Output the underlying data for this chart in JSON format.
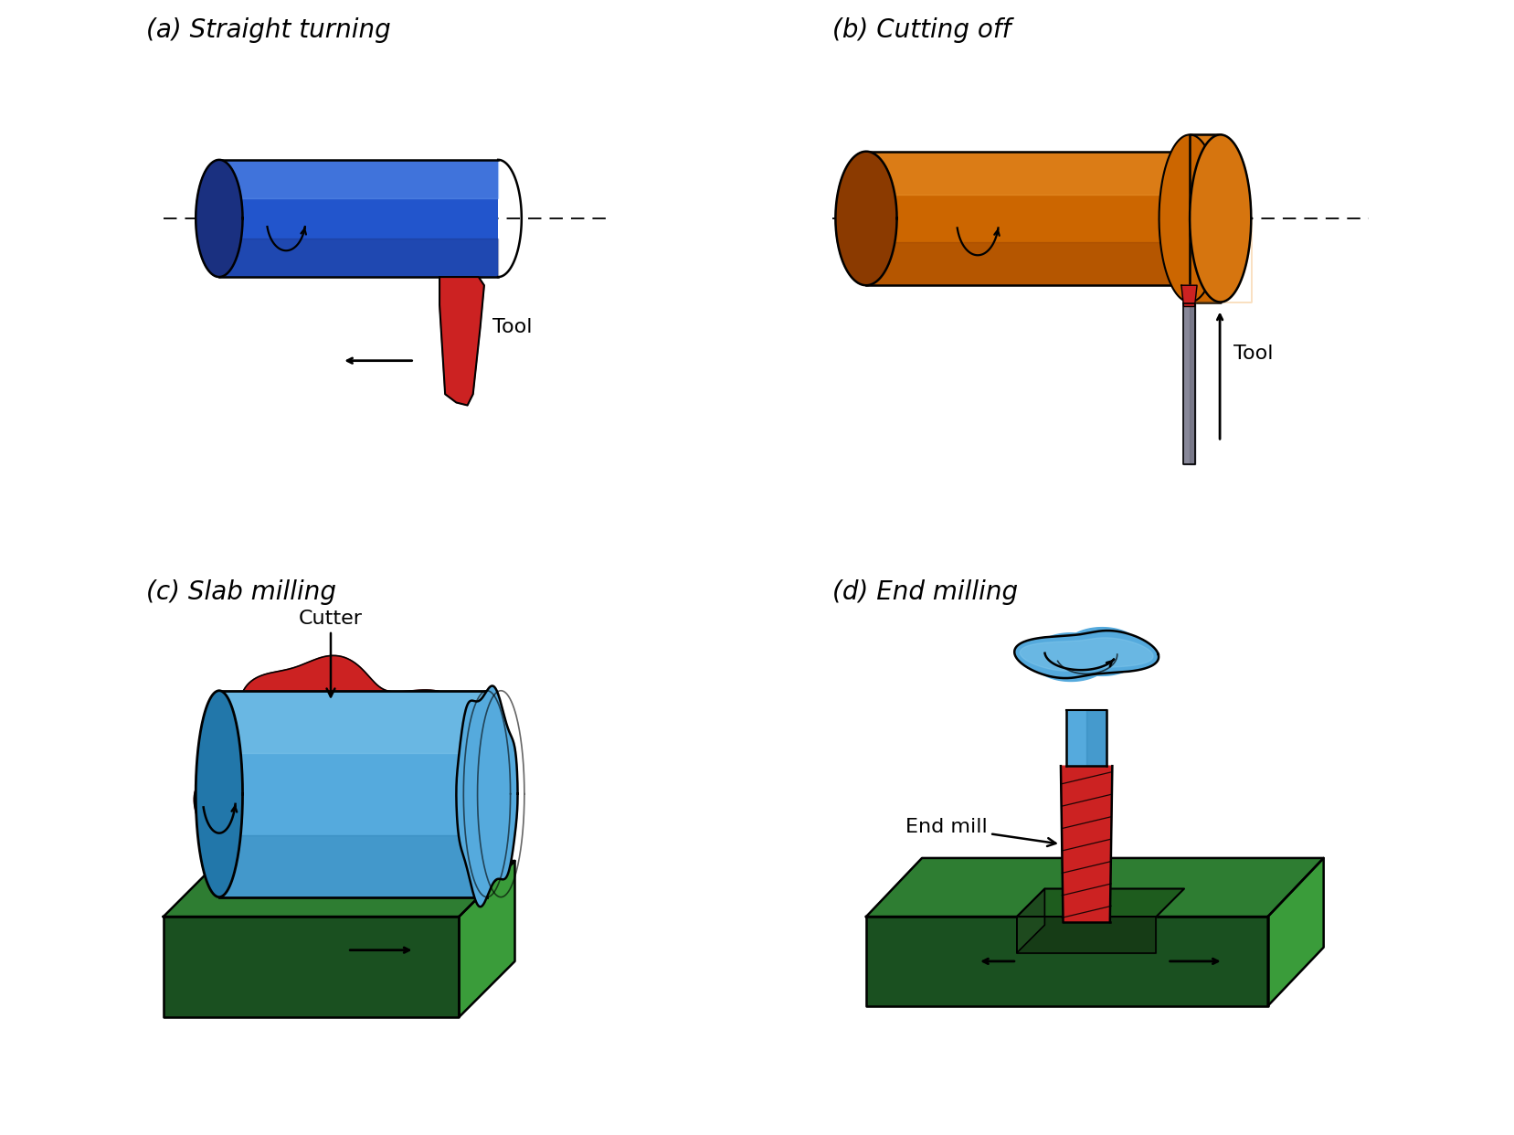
{
  "panels": [
    {
      "label": "(a) Straight turning"
    },
    {
      "label": "(b) Cutting off"
    },
    {
      "label": "(c) Slab milling"
    },
    {
      "label": "(d) End milling"
    }
  ],
  "colors": {
    "blue_dark": "#1a3080",
    "blue_mid": "#2255cc",
    "blue_light": "#6699ee",
    "blue_cyl": "#55aadd",
    "blue_cyl_light": "#88ccee",
    "blue_cyl_dark": "#2277aa",
    "orange_dark": "#8b3a00",
    "orange_mid": "#cc6600",
    "orange_light": "#ee9933",
    "red": "#cc2222",
    "red_dark": "#991111",
    "green_dark": "#1a5020",
    "green_mid": "#276b27",
    "green_light": "#3a9c3a",
    "green_top": "#2e7d32",
    "gray": "#888899",
    "gray_dark": "#555566",
    "black": "#111111",
    "white": "#ffffff"
  },
  "label_fontsize": 20,
  "annotation_fontsize": 16
}
